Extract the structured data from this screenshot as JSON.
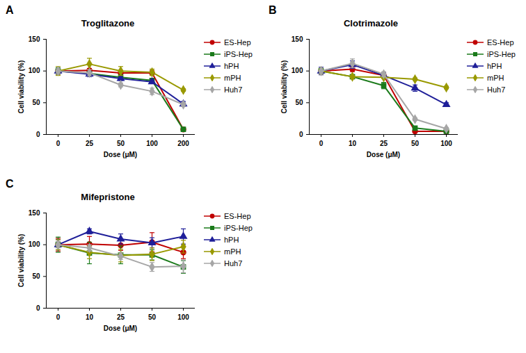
{
  "chart_data": [
    {
      "type": "line",
      "panel_label": "A",
      "title": "Troglitazone",
      "x_label": "Dose (μM)",
      "y_label": "Cell viability (%)",
      "categories": [
        "0",
        "25",
        "50",
        "100",
        "200"
      ],
      "ylim": [
        0,
        150
      ],
      "yticks": [
        0,
        50,
        100,
        150
      ],
      "grid": false,
      "legend": "right",
      "series": [
        {
          "name": "ES-Hep",
          "color": "#c00000",
          "marker": "circle",
          "values": [
            100,
            101,
            97,
            97,
            8
          ],
          "errors": [
            5,
            3,
            4,
            4,
            1
          ]
        },
        {
          "name": "iPS-Hep",
          "color": "#1a7a1a",
          "marker": "square",
          "values": [
            100,
            96,
            90,
            85,
            8
          ],
          "errors": [
            5,
            3,
            4,
            3,
            1
          ]
        },
        {
          "name": "hPH",
          "color": "#1f1f99",
          "marker": "triangle",
          "values": [
            100,
            95,
            88,
            83,
            48
          ],
          "errors": [
            4,
            4,
            3,
            3,
            4
          ]
        },
        {
          "name": "mPH",
          "color": "#999900",
          "marker": "diamond",
          "values": [
            100,
            111,
            100,
            98,
            70
          ],
          "errors": [
            7,
            9,
            7,
            5,
            2
          ]
        },
        {
          "name": "Huh7",
          "color": "#a6a6a6",
          "marker": "diamond",
          "values": [
            100,
            97,
            78,
            68,
            47
          ],
          "errors": [
            4,
            5,
            3,
            5,
            3
          ]
        }
      ]
    },
    {
      "type": "line",
      "panel_label": "B",
      "title": "Clotrimazole",
      "x_label": "Dose (μM)",
      "y_label": "Cell viability (%)",
      "categories": [
        "0",
        "10",
        "25",
        "50",
        "100"
      ],
      "ylim": [
        0,
        150
      ],
      "yticks": [
        0,
        50,
        100,
        150
      ],
      "grid": false,
      "legend": "right",
      "series": [
        {
          "name": "ES-Hep",
          "color": "#c00000",
          "marker": "circle",
          "values": [
            100,
            103,
            93,
            5,
            5
          ],
          "errors": [
            5,
            4,
            4,
            1,
            1
          ]
        },
        {
          "name": "iPS-Hep",
          "color": "#1a7a1a",
          "marker": "square",
          "values": [
            100,
            91,
            77,
            10,
            5
          ],
          "errors": [
            4,
            2,
            5,
            2,
            1
          ]
        },
        {
          "name": "hPH",
          "color": "#1f1f99",
          "marker": "triangle",
          "values": [
            100,
            110,
            93,
            73,
            47
          ],
          "errors": [
            6,
            6,
            4,
            5,
            3
          ]
        },
        {
          "name": "mPH",
          "color": "#999900",
          "marker": "diamond",
          "values": [
            100,
            91,
            90,
            87,
            74
          ],
          "errors": [
            5,
            2,
            2,
            2,
            2
          ]
        },
        {
          "name": "Huh7",
          "color": "#a6a6a6",
          "marker": "diamond",
          "values": [
            100,
            112,
            95,
            24,
            9
          ],
          "errors": [
            5,
            7,
            4,
            2,
            2
          ]
        }
      ]
    },
    {
      "type": "line",
      "panel_label": "C",
      "title": "Mifepristone",
      "x_label": "Dose (μM)",
      "y_label": "Cell viability (%)",
      "categories": [
        "0",
        "10",
        "25",
        "50",
        "100"
      ],
      "ylim": [
        0,
        150
      ],
      "yticks": [
        0,
        50,
        100,
        150
      ],
      "grid": false,
      "legend": "right",
      "series": [
        {
          "name": "ES-Hep",
          "color": "#c00000",
          "marker": "circle",
          "values": [
            100,
            101,
            99,
            104,
            88
          ],
          "errors": [
            10,
            12,
            8,
            15,
            10
          ]
        },
        {
          "name": "iPS-Hep",
          "color": "#1a7a1a",
          "marker": "square",
          "values": [
            100,
            87,
            84,
            84,
            65
          ],
          "errors": [
            12,
            17,
            14,
            8,
            10
          ]
        },
        {
          "name": "hPH",
          "color": "#1f1f99",
          "marker": "triangle",
          "values": [
            100,
            121,
            109,
            103,
            113
          ],
          "errors": [
            8,
            4,
            8,
            8,
            12
          ]
        },
        {
          "name": "mPH",
          "color": "#999900",
          "marker": "diamond",
          "values": [
            100,
            88,
            83,
            85,
            97
          ],
          "errors": [
            8,
            10,
            10,
            10,
            10
          ]
        },
        {
          "name": "Huh7",
          "color": "#a6a6a6",
          "marker": "diamond",
          "values": [
            100,
            95,
            82,
            65,
            66
          ],
          "errors": [
            5,
            5,
            5,
            7,
            10
          ]
        }
      ]
    }
  ]
}
